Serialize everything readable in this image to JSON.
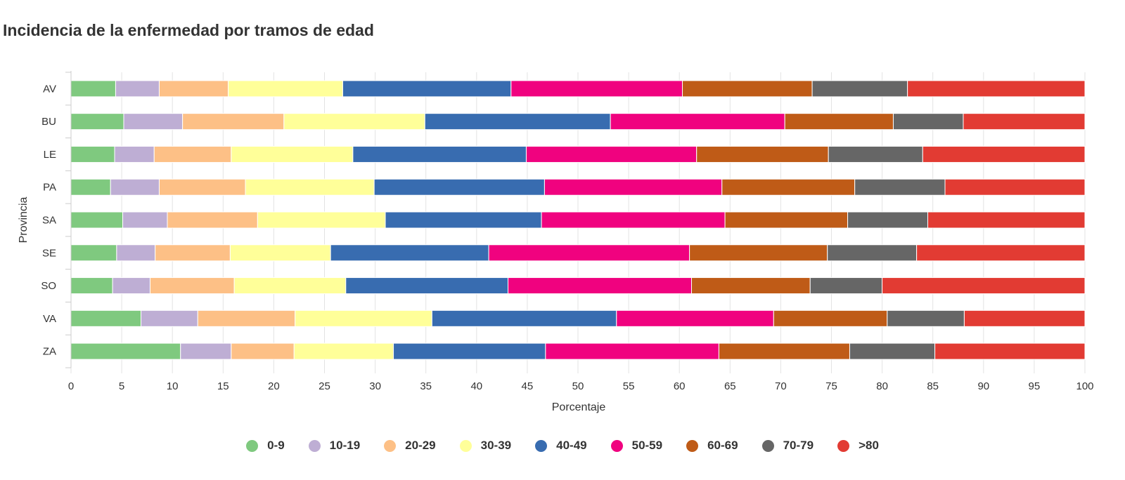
{
  "chart_data": {
    "type": "bar",
    "orientation": "horizontal",
    "stacked": true,
    "title": "Incidencia de la enfermedad por tramos de edad",
    "xlabel": "Porcentaje",
    "ylabel": "Provincia",
    "xlim": [
      0,
      100
    ],
    "xticks": [
      0,
      5,
      10,
      15,
      20,
      25,
      30,
      35,
      40,
      45,
      50,
      55,
      60,
      65,
      70,
      75,
      80,
      85,
      90,
      95,
      100
    ],
    "grid": true,
    "legend_position": "bottom",
    "categories": [
      "AV",
      "BU",
      "LE",
      "PA",
      "SA",
      "SE",
      "SO",
      "VA",
      "ZA"
    ],
    "series": [
      {
        "name": "0-9",
        "color": "#7fc97f",
        "values": [
          4.4,
          5.2,
          4.3,
          3.9,
          5.1,
          4.5,
          4.1,
          6.9,
          10.8
        ]
      },
      {
        "name": "10-19",
        "color": "#beaed4",
        "values": [
          4.3,
          5.8,
          3.9,
          4.8,
          4.4,
          3.8,
          3.7,
          5.6,
          5.0
        ]
      },
      {
        "name": "20-29",
        "color": "#fdc086",
        "values": [
          6.8,
          10.0,
          7.6,
          8.5,
          8.9,
          7.4,
          8.3,
          9.6,
          6.2
        ]
      },
      {
        "name": "30-39",
        "color": "#ffff99",
        "values": [
          11.3,
          13.9,
          12.0,
          12.7,
          12.6,
          9.9,
          11.0,
          13.5,
          9.8
        ]
      },
      {
        "name": "40-49",
        "color": "#386cb0",
        "values": [
          16.6,
          18.3,
          17.1,
          16.8,
          15.4,
          15.6,
          16.0,
          18.2,
          15.0
        ]
      },
      {
        "name": "50-59",
        "color": "#f0027f",
        "values": [
          16.9,
          17.2,
          16.8,
          17.5,
          18.1,
          19.8,
          18.1,
          15.5,
          17.1
        ]
      },
      {
        "name": "60-69",
        "color": "#bf5b17",
        "values": [
          12.8,
          10.7,
          13.0,
          13.1,
          12.1,
          13.6,
          11.7,
          11.2,
          12.9
        ]
      },
      {
        "name": "70-79",
        "color": "#666666",
        "values": [
          9.4,
          6.9,
          9.3,
          8.9,
          7.9,
          8.8,
          7.1,
          7.6,
          8.4
        ]
      },
      {
        "name": ">80",
        "color": "#e23b33",
        "values": [
          17.5,
          12.0,
          16.0,
          13.8,
          15.5,
          16.6,
          20.0,
          11.9,
          14.8
        ]
      }
    ]
  }
}
